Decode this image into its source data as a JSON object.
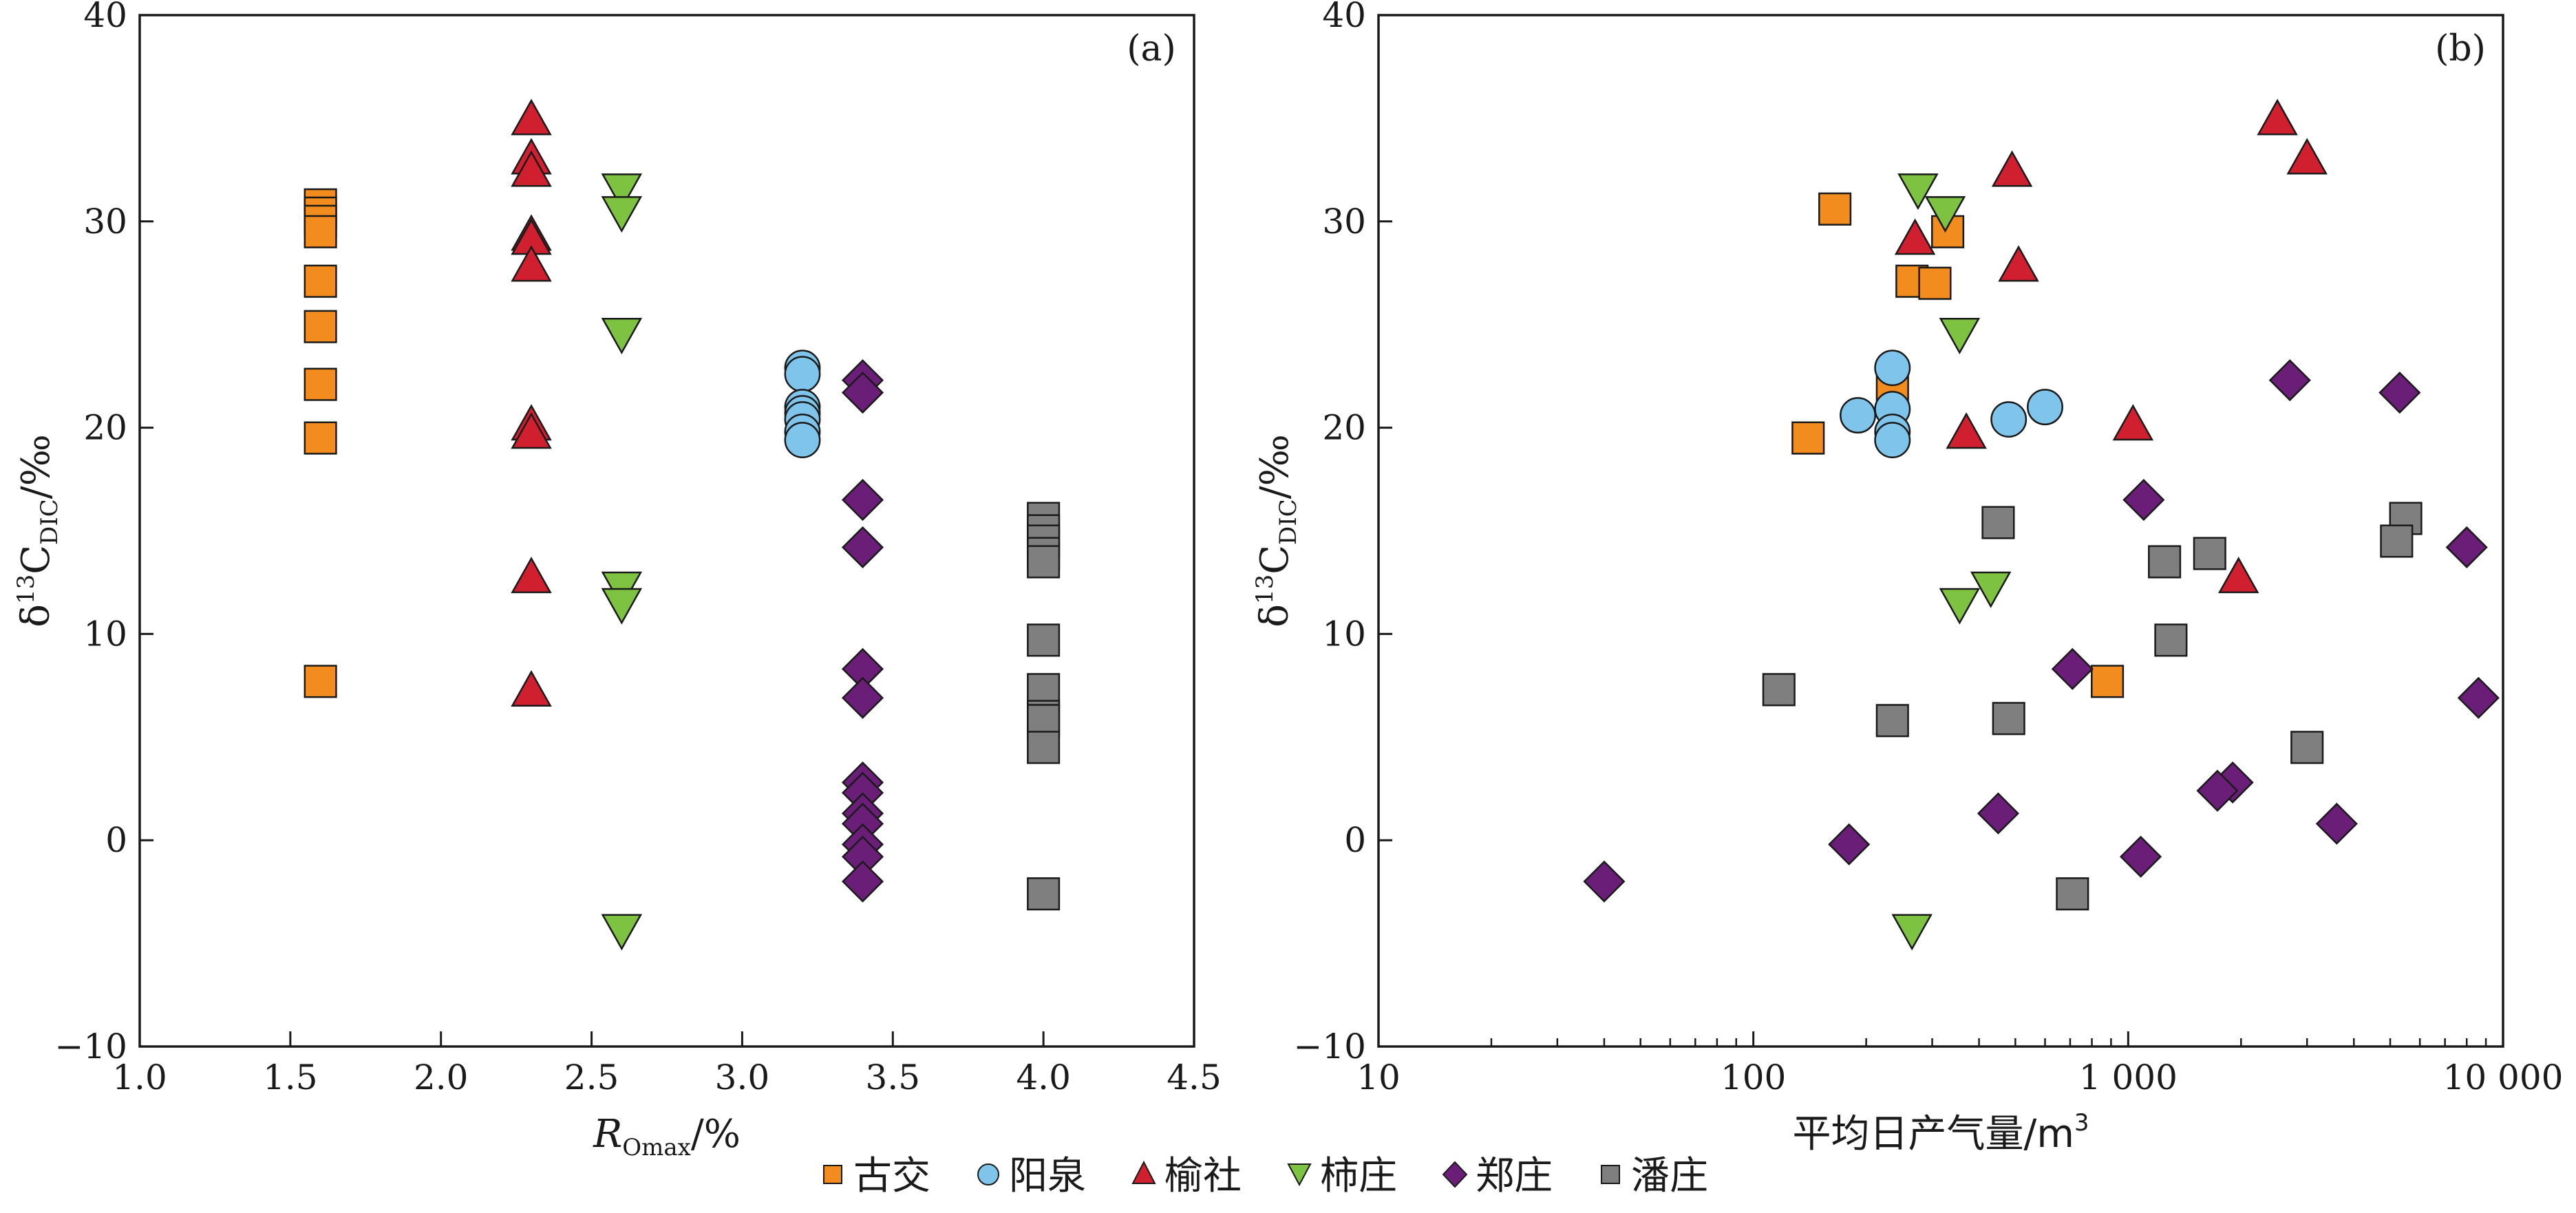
{
  "chart_data": [
    {
      "panel": "(a)",
      "type": "scatter",
      "xlabel": "R_Omax/%",
      "xlabel_main": "R",
      "xlabel_sub": "Omax",
      "xlabel_unit": "/%",
      "ylabel": "δ13C_DIC/‰",
      "xlim": [
        1.0,
        4.5
      ],
      "ylim": [
        -10,
        40
      ],
      "xticks": [
        1.0,
        1.5,
        2.0,
        2.5,
        3.0,
        3.5,
        4.0,
        4.5
      ],
      "xtick_labels": [
        "1.0",
        "1.5",
        "2.0",
        "2.5",
        "3.0",
        "3.5",
        "4.0",
        "4.5"
      ],
      "yticks": [
        -10,
        0,
        10,
        20,
        30,
        40
      ],
      "ytick_labels": [
        "−10",
        "0",
        "10",
        "20",
        "30",
        "40"
      ],
      "series": [
        {
          "name": "古交",
          "marker": "square",
          "color": "#f28c1e",
          "points": [
            [
              1.6,
              30.8
            ],
            [
              1.6,
              30.4
            ],
            [
              1.6,
              30.0
            ],
            [
              1.6,
              29.5
            ],
            [
              1.6,
              27.1
            ],
            [
              1.6,
              24.9
            ],
            [
              1.6,
              22.1
            ],
            [
              1.6,
              19.5
            ],
            [
              1.6,
              7.7
            ]
          ]
        },
        {
          "name": "阳泉",
          "marker": "circle",
          "color": "#7fc4ea",
          "points": [
            [
              3.2,
              22.9
            ],
            [
              3.2,
              22.6
            ],
            [
              3.2,
              21.0
            ],
            [
              3.2,
              20.7
            ],
            [
              3.2,
              20.4
            ],
            [
              3.2,
              19.8
            ],
            [
              3.2,
              19.4
            ]
          ]
        },
        {
          "name": "榆社",
          "marker": "triangle-up",
          "color": "#d01f2f",
          "points": [
            [
              2.3,
              34.9
            ],
            [
              2.3,
              33.0
            ],
            [
              2.3,
              32.4
            ],
            [
              2.3,
              29.3
            ],
            [
              2.3,
              29.1
            ],
            [
              2.3,
              27.8
            ],
            [
              2.3,
              20.1
            ],
            [
              2.3,
              19.7
            ],
            [
              2.3,
              12.7
            ],
            [
              2.3,
              7.2
            ]
          ]
        },
        {
          "name": "柿庄",
          "marker": "triangle-down",
          "color": "#7ec242",
          "points": [
            [
              2.6,
              31.6
            ],
            [
              2.6,
              30.5
            ],
            [
              2.6,
              24.6
            ],
            [
              2.6,
              12.3
            ],
            [
              2.6,
              11.5
            ],
            [
              2.6,
              -4.3
            ]
          ]
        },
        {
          "name": "郑庄",
          "marker": "diamond",
          "color": "#6a1e78",
          "points": [
            [
              3.4,
              22.3
            ],
            [
              3.4,
              21.7
            ],
            [
              3.4,
              16.5
            ],
            [
              3.4,
              14.2
            ],
            [
              3.4,
              8.3
            ],
            [
              3.4,
              6.9
            ],
            [
              3.4,
              2.8
            ],
            [
              3.4,
              2.3
            ],
            [
              3.4,
              1.3
            ],
            [
              3.4,
              0.8
            ],
            [
              3.4,
              -0.2
            ],
            [
              3.4,
              -0.8
            ],
            [
              3.4,
              -2.0
            ]
          ]
        },
        {
          "name": "潘庄",
          "marker": "square",
          "color": "#7f7f7f",
          "points": [
            [
              4.0,
              15.6
            ],
            [
              4.0,
              15.0
            ],
            [
              4.0,
              14.5
            ],
            [
              4.0,
              13.9
            ],
            [
              4.0,
              13.5
            ],
            [
              4.0,
              9.7
            ],
            [
              4.0,
              7.3
            ],
            [
              4.0,
              6.0
            ],
            [
              4.0,
              5.8
            ],
            [
              4.0,
              4.5
            ],
            [
              4.0,
              -2.6
            ]
          ]
        }
      ]
    },
    {
      "panel": "(b)",
      "type": "scatter",
      "xscale": "log",
      "xlabel": "平均日产气量/m³",
      "xlabel_main": "平均日产气量/m",
      "xlabel_sup": "3",
      "ylabel": "δ13C_DIC/‰",
      "xlim": [
        10,
        10000
      ],
      "ylim": [
        -10,
        40
      ],
      "xticks": [
        10,
        100,
        1000,
        10000
      ],
      "xtick_labels": [
        "10",
        "100",
        "1 000",
        "10 000"
      ],
      "yticks": [
        -10,
        0,
        10,
        20,
        30,
        40
      ],
      "ytick_labels": [
        "−10",
        "0",
        "10",
        "20",
        "30",
        "40"
      ],
      "series": [
        {
          "name": "古交",
          "marker": "square",
          "color": "#f28c1e",
          "points": [
            [
              165,
              30.6
            ],
            [
              330,
              29.5
            ],
            [
              265,
              27.1
            ],
            [
              305,
              27.0
            ],
            [
              235,
              22.1
            ],
            [
              140,
              19.5
            ],
            [
              880,
              7.7
            ]
          ]
        },
        {
          "name": "阳泉",
          "marker": "circle",
          "color": "#7fc4ea",
          "points": [
            [
              235,
              22.9
            ],
            [
              235,
              20.9
            ],
            [
              190,
              20.6
            ],
            [
              600,
              21.0
            ],
            [
              480,
              20.4
            ],
            [
              235,
              19.8
            ],
            [
              235,
              19.4
            ]
          ]
        },
        {
          "name": "榆社",
          "marker": "triangle-up",
          "color": "#d01f2f",
          "points": [
            [
              2500,
              34.9
            ],
            [
              3000,
              33.0
            ],
            [
              490,
              32.4
            ],
            [
              270,
              29.1
            ],
            [
              510,
              27.8
            ],
            [
              370,
              19.7
            ],
            [
              1030,
              20.1
            ],
            [
              1970,
              12.7
            ]
          ]
        },
        {
          "name": "柿庄",
          "marker": "triangle-down",
          "color": "#7ec242",
          "points": [
            [
              275,
              31.6
            ],
            [
              325,
              30.5
            ],
            [
              355,
              24.6
            ],
            [
              430,
              12.3
            ],
            [
              355,
              11.5
            ],
            [
              265,
              -4.3
            ]
          ]
        },
        {
          "name": "郑庄",
          "marker": "diamond",
          "color": "#6a1e78",
          "points": [
            [
              2700,
              22.3
            ],
            [
              5300,
              21.7
            ],
            [
              1100,
              16.5
            ],
            [
              8000,
              14.2
            ],
            [
              710,
              8.3
            ],
            [
              8600,
              6.9
            ],
            [
              1900,
              2.8
            ],
            [
              1730,
              2.4
            ],
            [
              450,
              1.3
            ],
            [
              3600,
              0.8
            ],
            [
              180,
              -0.2
            ],
            [
              1080,
              -0.8
            ],
            [
              40,
              -2.0
            ]
          ]
        },
        {
          "name": "潘庄",
          "marker": "square",
          "color": "#7f7f7f",
          "points": [
            [
              5500,
              15.6
            ],
            [
              450,
              15.4
            ],
            [
              5200,
              14.5
            ],
            [
              1650,
              13.9
            ],
            [
              1250,
              13.5
            ],
            [
              1300,
              9.7
            ],
            [
              117,
              7.3
            ],
            [
              480,
              5.9
            ],
            [
              235,
              5.8
            ],
            [
              3000,
              4.5
            ],
            [
              710,
              -2.6
            ]
          ]
        }
      ]
    }
  ],
  "legend": {
    "placement": "bottom-center",
    "items": [
      "古交",
      "阳泉",
      "榆社",
      "柿庄",
      "郑庄",
      "潘庄"
    ]
  }
}
